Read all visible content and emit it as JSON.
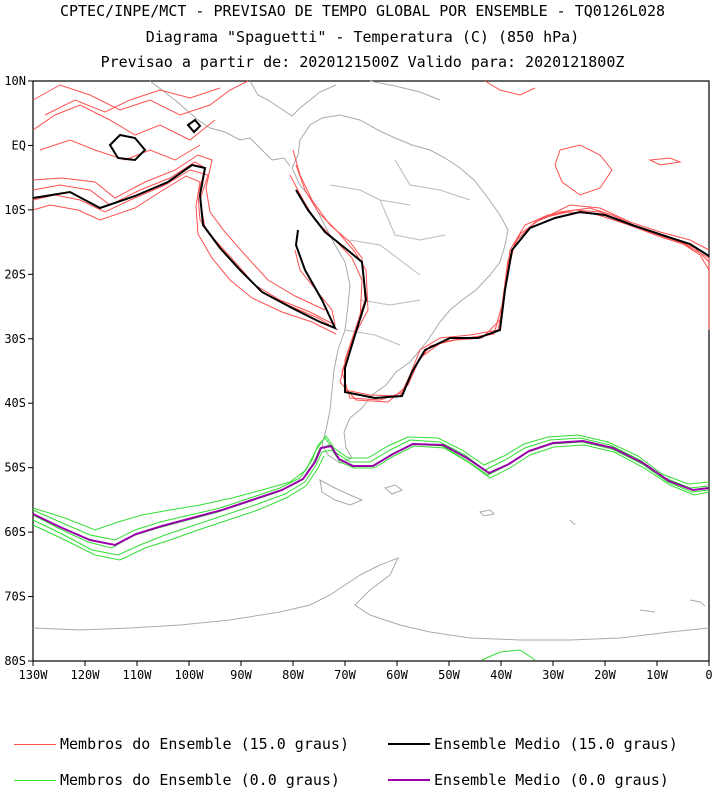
{
  "title_lines": [
    "CPTEC/INPE/MCT - PREVISAO DE TEMPO GLOBAL POR ENSEMBLE - TQ0126L028",
    "Diagrama \"Spaguetti\" - Temperatura (C) (850 hPa)",
    "Previsao a partir de: 2020121500Z  Valido para: 2020121800Z"
  ],
  "map": {
    "lon_range": [
      -130,
      0
    ],
    "lat_range": [
      -80,
      10
    ],
    "x_ticks": [
      "130W",
      "120W",
      "110W",
      "100W",
      "90W",
      "80W",
      "70W",
      "60W",
      "50W",
      "40W",
      "30W",
      "20W",
      "10W",
      "0"
    ],
    "y_ticks": [
      "10N",
      "EQ",
      "10S",
      "20S",
      "30S",
      "40S",
      "50S",
      "60S",
      "70S",
      "80S"
    ]
  },
  "legend": [
    {
      "label": "Membros do Ensemble (15.0 graus)",
      "color": "#ff5050"
    },
    {
      "label": "Ensemble Medio (15.0 graus)",
      "color": "#000000"
    },
    {
      "label": "Membros do Ensemble (0.0 graus)",
      "color": "#33dd33"
    },
    {
      "label": "Ensemble Medio (0.0 graus)",
      "color": "#9900aa"
    }
  ],
  "colors": {
    "coast": "#aaaaaa",
    "frame": "#000000"
  }
}
